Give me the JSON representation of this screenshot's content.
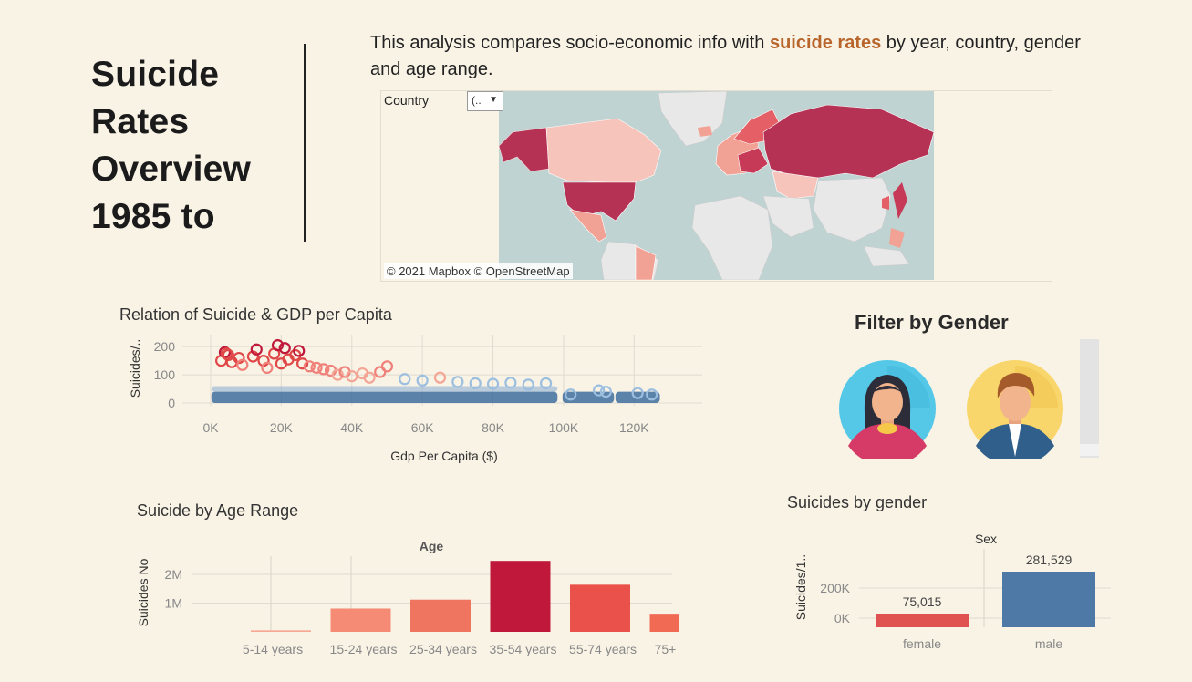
{
  "header": {
    "title_lines": [
      "Suicide",
      "Rates",
      "Overview",
      "1985 to"
    ],
    "intro_before": "This analysis compares socio-economic info with ",
    "intro_highlight": "suicide rates",
    "intro_after": " by year, country, gender and age range."
  },
  "map": {
    "filter_label": "Country",
    "filter_value": "(..",
    "credit": "© 2021 Mapbox  © OpenStreetMap"
  },
  "filter": {
    "title": "Filter by Gender",
    "options": [
      "female",
      "male"
    ]
  },
  "colors": {
    "dark_red": "#c0183a",
    "red": "#e9514a",
    "salmon": "#f58b74",
    "light_salmon": "#f7a793",
    "blue": "#4e79a7",
    "female_bar": "#e05252",
    "male_bar": "#4e79a7",
    "highlight": "#b8652c"
  },
  "chart_data": [
    {
      "type": "scatter",
      "title": "Relation of Suicide & GDP per Capita",
      "xlabel": "Gdp Per Capita ($)",
      "ylabel": "Suicides/..",
      "xlim": [
        0,
        130000
      ],
      "ylim": [
        0,
        220
      ],
      "x_ticks": [
        "0K",
        "20K",
        "40K",
        "60K",
        "80K",
        "100K",
        "120K"
      ],
      "y_ticks": [
        "0",
        "100",
        "200"
      ],
      "series": [
        {
          "points": [
            [
              3000,
              150
            ],
            [
              4000,
              180
            ],
            [
              4500,
              175
            ],
            [
              5000,
              170
            ],
            [
              6000,
              145
            ],
            [
              8000,
              160
            ],
            [
              9000,
              135
            ],
            [
              12000,
              165
            ],
            [
              13000,
              190
            ],
            [
              15000,
              150
            ],
            [
              16000,
              125
            ],
            [
              18000,
              175
            ],
            [
              19000,
              205
            ],
            [
              20000,
              140
            ],
            [
              21000,
              195
            ],
            [
              22000,
              155
            ],
            [
              24000,
              170
            ],
            [
              25000,
              185
            ],
            [
              26000,
              140
            ],
            [
              28000,
              130
            ],
            [
              30000,
              125
            ],
            [
              32000,
              120
            ],
            [
              34000,
              115
            ],
            [
              36000,
              100
            ],
            [
              38000,
              110
            ],
            [
              40000,
              95
            ],
            [
              43000,
              105
            ],
            [
              45000,
              90
            ],
            [
              48000,
              110
            ],
            [
              50000,
              130
            ],
            [
              55000,
              85
            ],
            [
              60000,
              80
            ],
            [
              65000,
              90
            ],
            [
              70000,
              75
            ],
            [
              75000,
              70
            ],
            [
              80000,
              68
            ],
            [
              85000,
              72
            ],
            [
              90000,
              65
            ],
            [
              95000,
              70
            ],
            [
              102000,
              30
            ],
            [
              110000,
              45
            ],
            [
              112000,
              40
            ],
            [
              121000,
              35
            ],
            [
              125000,
              30
            ]
          ]
        }
      ]
    },
    {
      "type": "bar",
      "title": "Suicide by Age Range",
      "xlabel": "Age",
      "ylabel": "Suicides No",
      "categories": [
        "5-14 years",
        "15-24 years",
        "25-34 years",
        "35-54 years",
        "55-74 years",
        "75+ years"
      ],
      "values": [
        52000,
        810000,
        1120000,
        2470000,
        1640000,
        630000
      ],
      "ylim": [
        0,
        2600000
      ],
      "y_ticks": [
        {
          "label": "1M",
          "value": 1000000
        },
        {
          "label": "2M",
          "value": 2000000
        }
      ]
    },
    {
      "type": "bar",
      "title": "Suicides by gender",
      "xlabel": "Sex",
      "ylabel": "Suicides/1..",
      "categories": [
        "female",
        "male"
      ],
      "values": [
        75015,
        281529
      ],
      "value_labels": [
        "75,015",
        "281,529"
      ],
      "ylim": [
        0,
        300000
      ],
      "y_ticks": [
        {
          "label": "0K",
          "value": 0
        },
        {
          "label": "200K",
          "value": 200000
        }
      ]
    }
  ]
}
